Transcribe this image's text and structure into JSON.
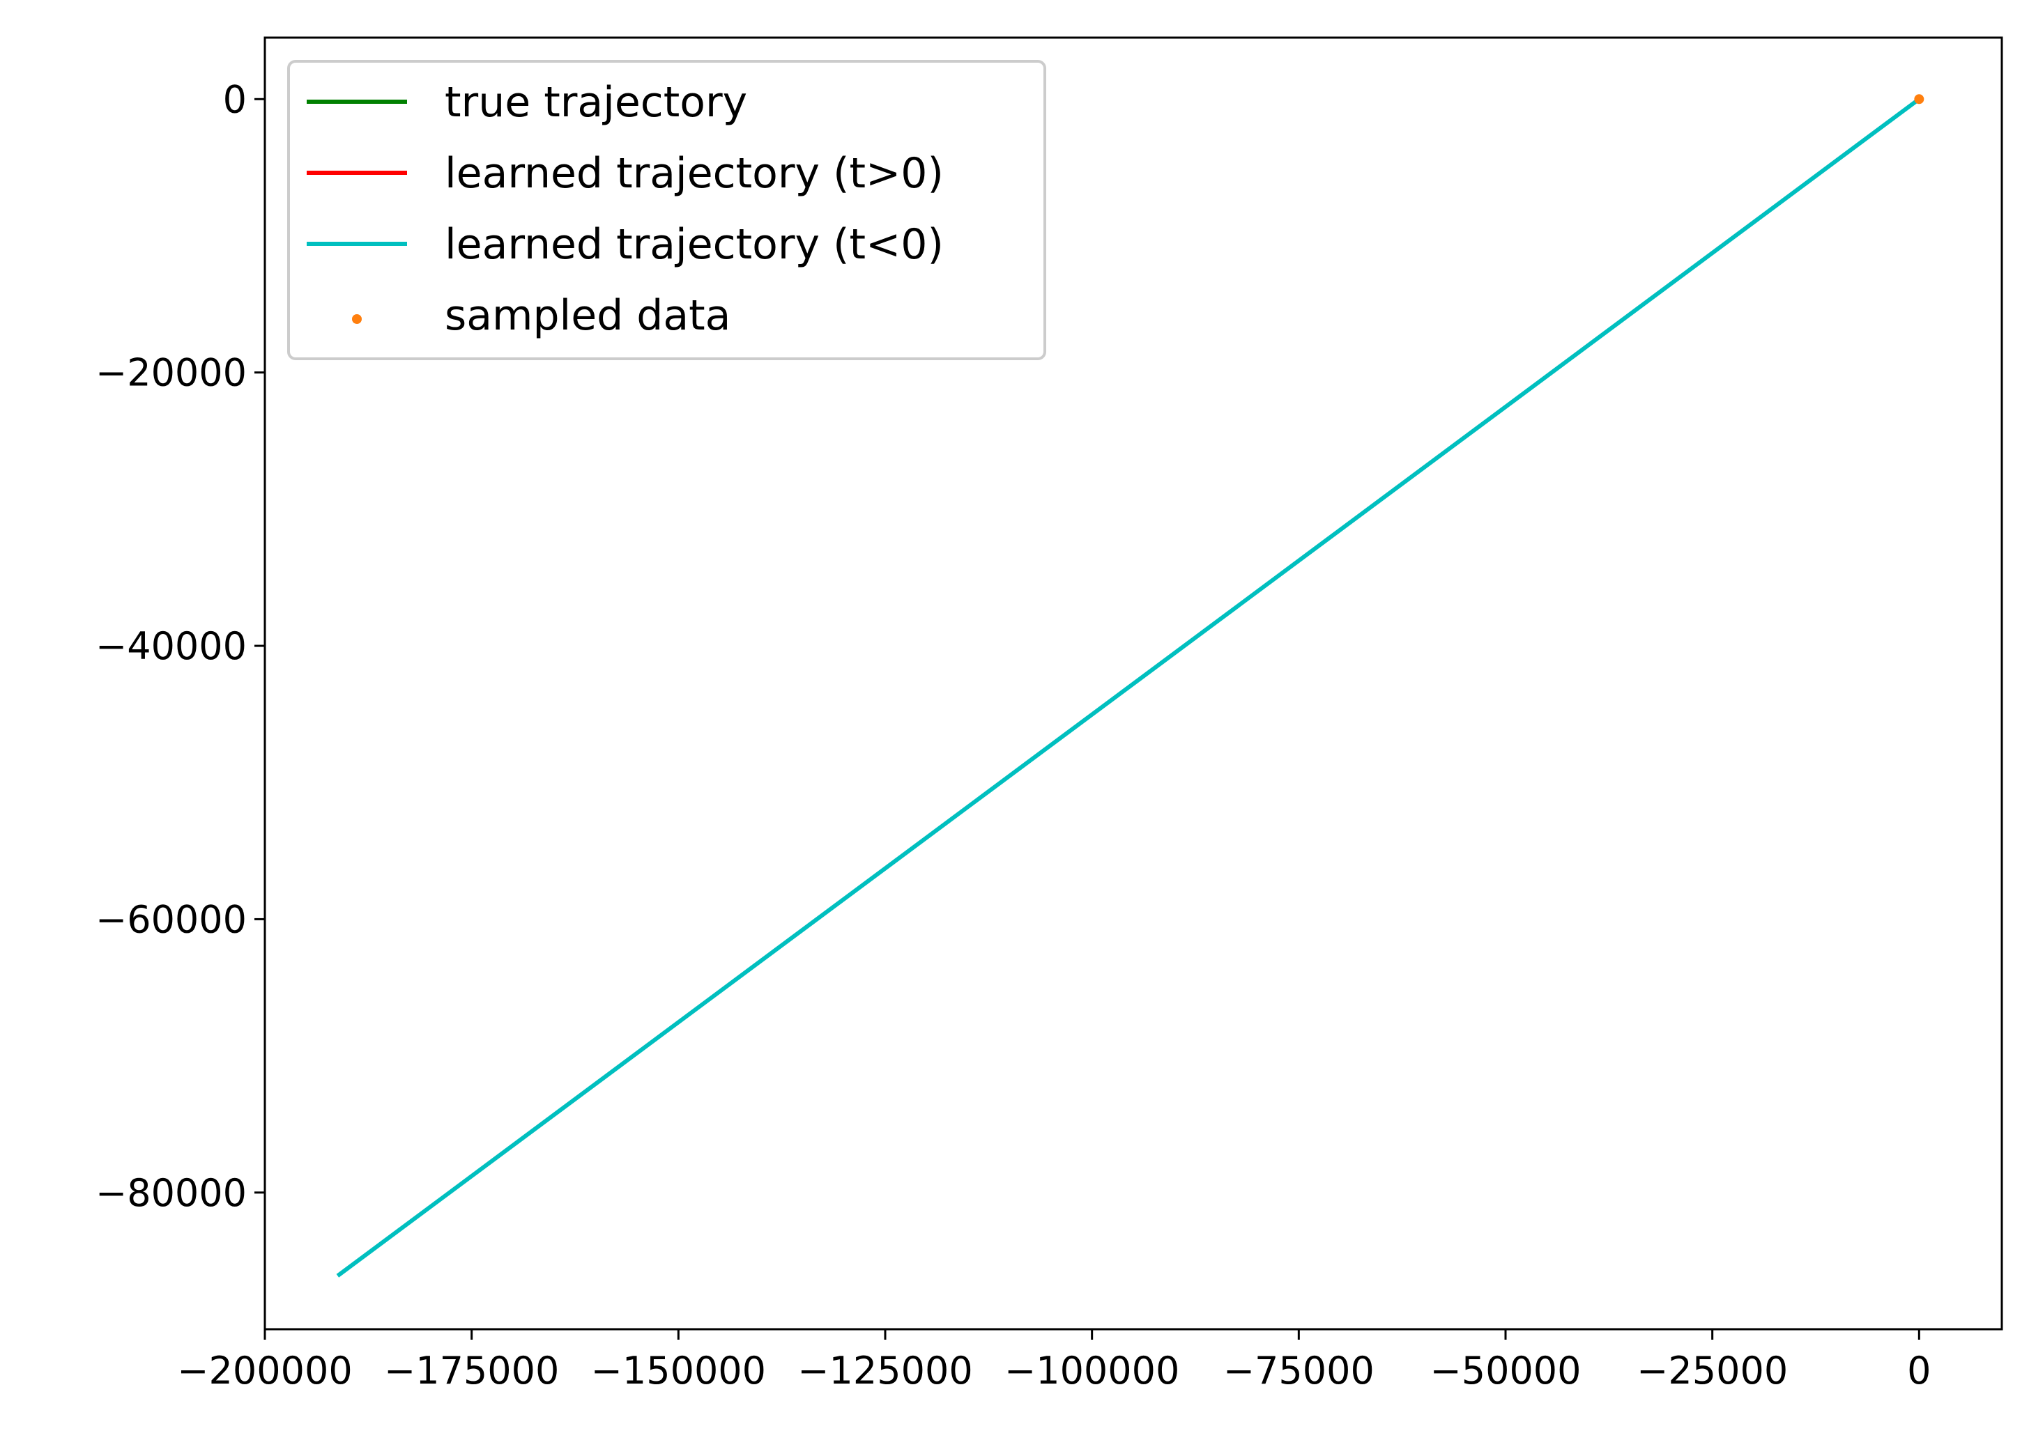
{
  "chart_data": {
    "type": "line",
    "title": "",
    "xlabel": "",
    "ylabel": "",
    "xlim": [
      -200000,
      10000
    ],
    "ylim": [
      -90000,
      4500
    ],
    "grid": false,
    "legend_position": "top-left",
    "x_ticks": [
      {
        "value": -200000,
        "label": "−200000"
      },
      {
        "value": -175000,
        "label": "−175000"
      },
      {
        "value": -150000,
        "label": "−150000"
      },
      {
        "value": -125000,
        "label": "−125000"
      },
      {
        "value": -100000,
        "label": "−100000"
      },
      {
        "value": -75000,
        "label": "−75000"
      },
      {
        "value": -50000,
        "label": "−50000"
      },
      {
        "value": -25000,
        "label": "−25000"
      },
      {
        "value": 0,
        "label": "0"
      }
    ],
    "y_ticks": [
      {
        "value": 0,
        "label": "0"
      },
      {
        "value": -20000,
        "label": "−20000"
      },
      {
        "value": -40000,
        "label": "−40000"
      },
      {
        "value": -60000,
        "label": "−60000"
      },
      {
        "value": -80000,
        "label": "−80000"
      }
    ],
    "series": [
      {
        "name": "true trajectory",
        "kind": "line",
        "color": "#008000",
        "x": [
          0,
          2
        ],
        "y": [
          0,
          1
        ]
      },
      {
        "name": "learned trajectory (t>0)",
        "kind": "line",
        "color": "#ff0000",
        "x": [
          0,
          2
        ],
        "y": [
          0,
          1
        ]
      },
      {
        "name": "learned trajectory (t<0)",
        "kind": "line",
        "color": "#00bfbf",
        "x": [
          -191000,
          0
        ],
        "y": [
          -86000,
          0
        ]
      },
      {
        "name": "sampled data",
        "kind": "scatter",
        "color": "#ff7f0e",
        "x": [
          0
        ],
        "y": [
          0
        ]
      }
    ]
  }
}
